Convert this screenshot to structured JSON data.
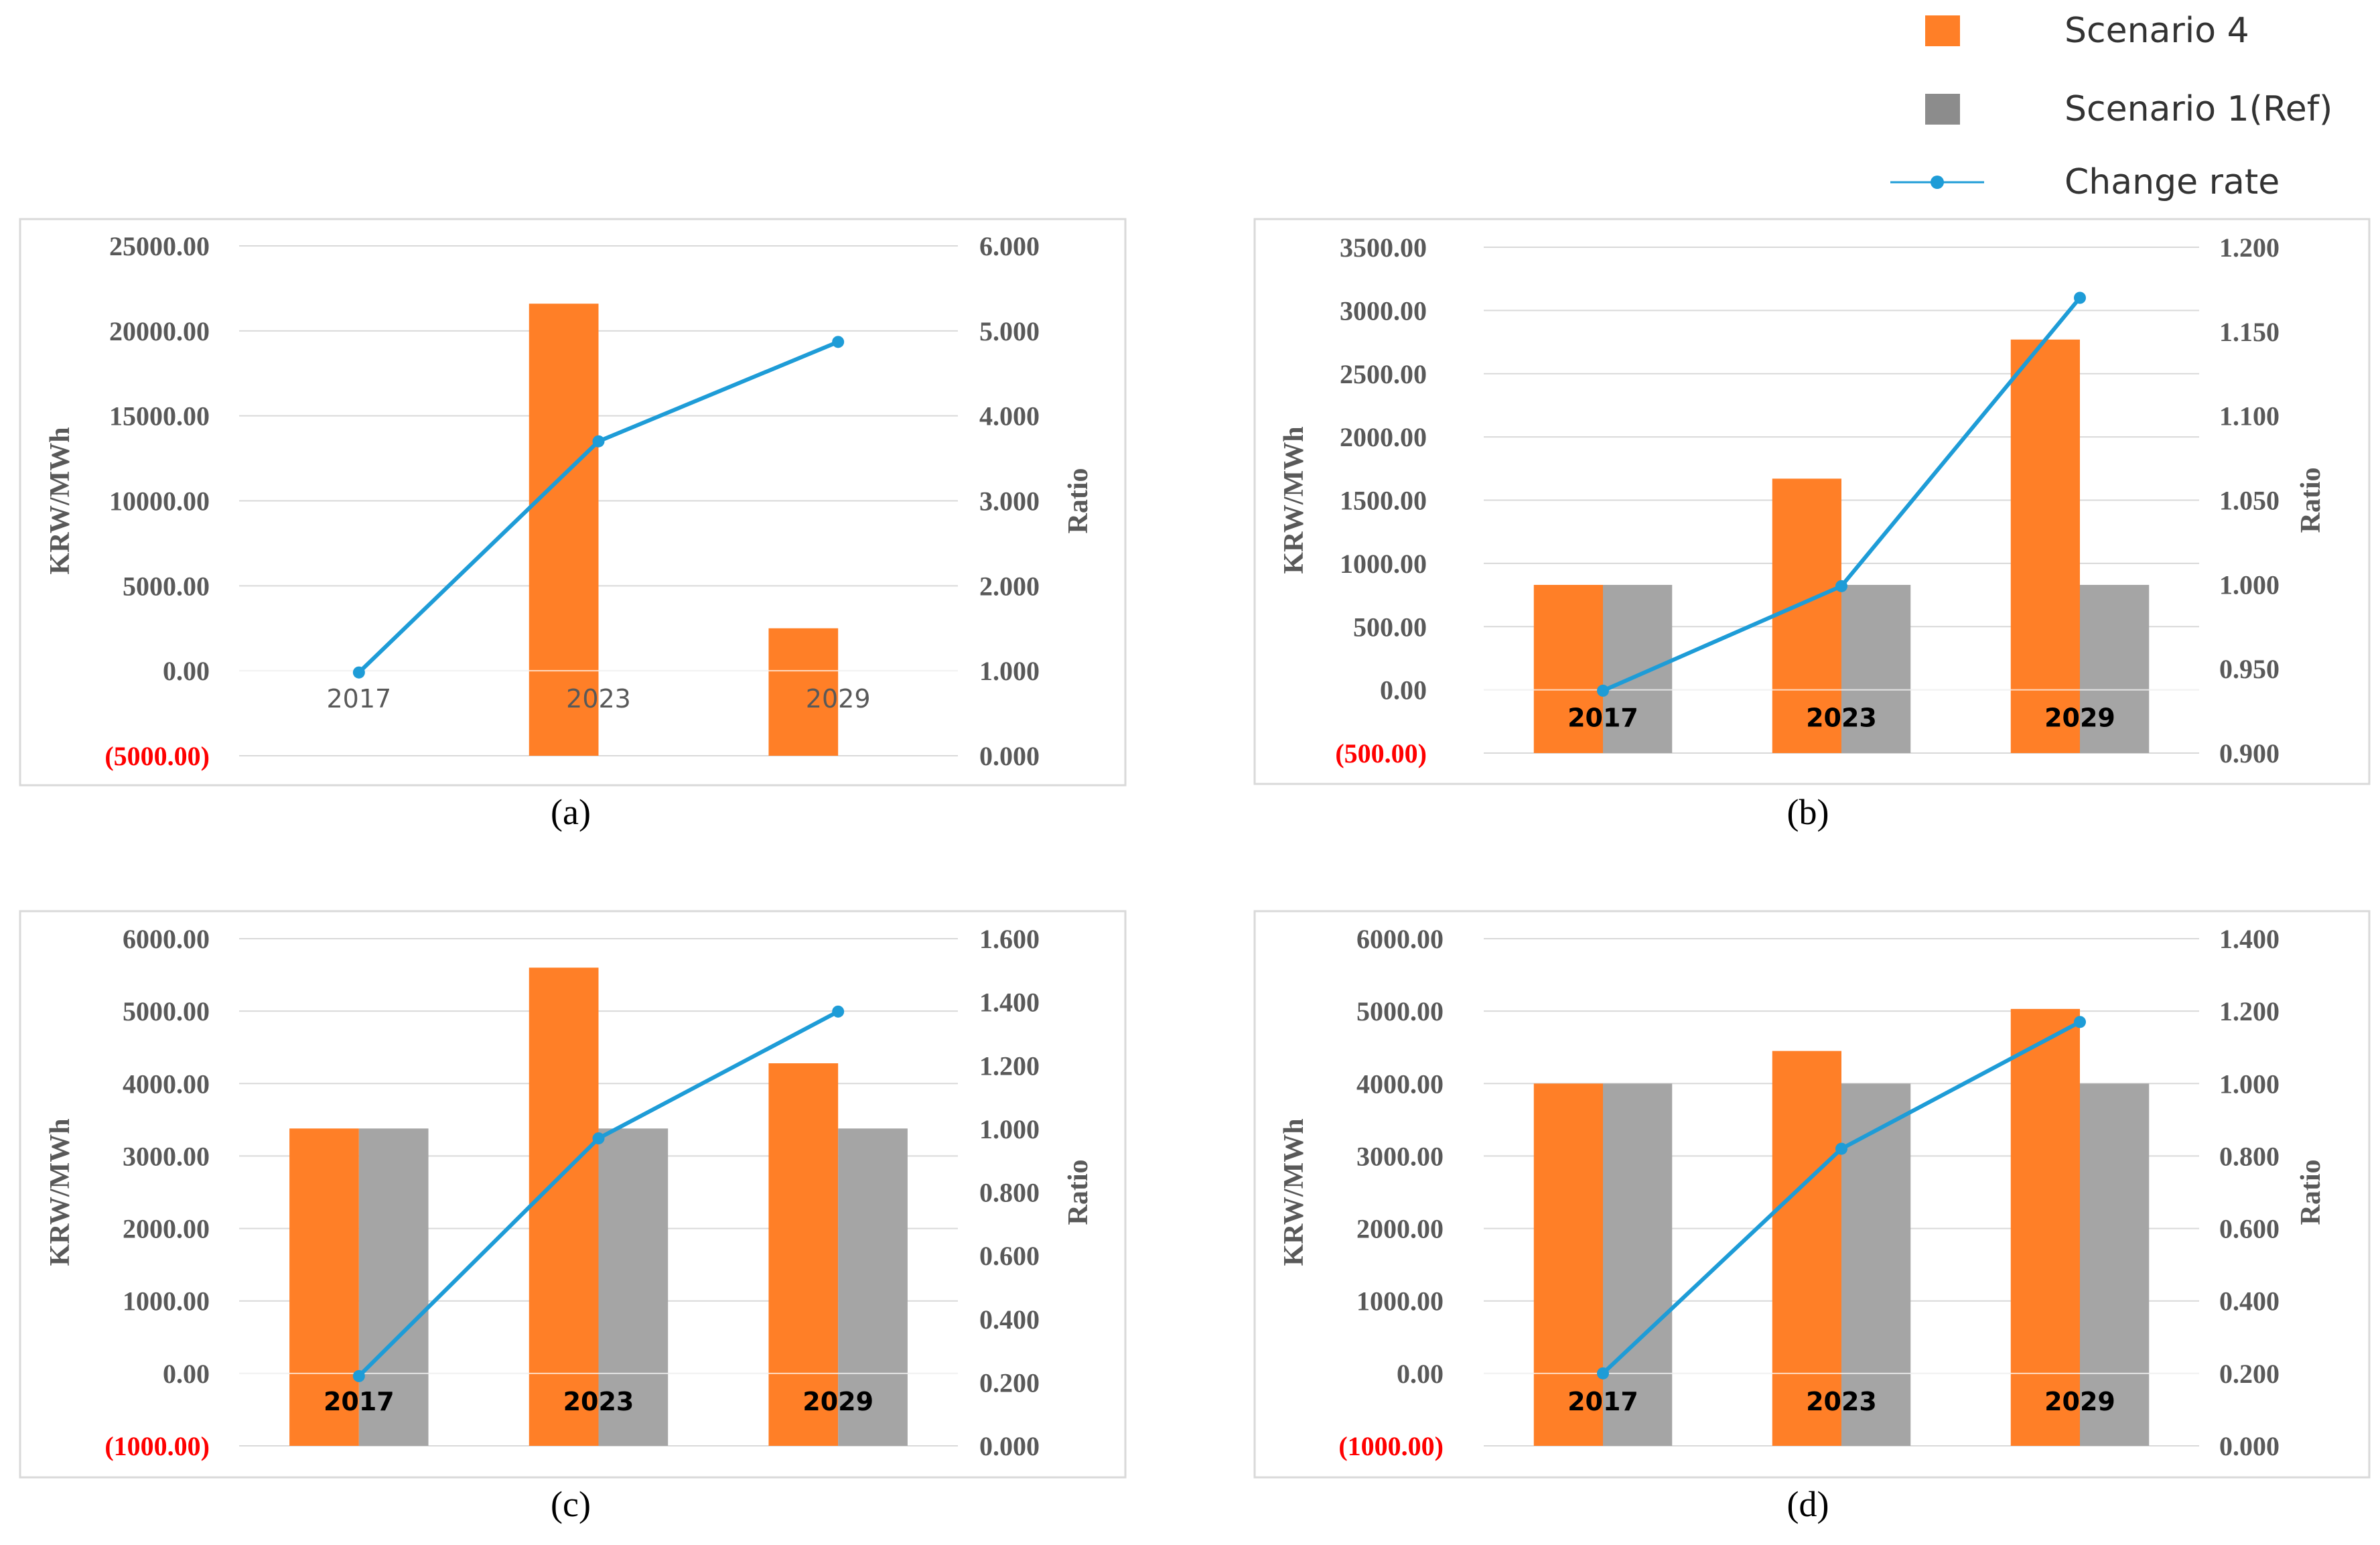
{
  "legend": {
    "items": [
      {
        "label": "Scenario 4",
        "kind": "box",
        "color": "#FF7F27"
      },
      {
        "label": "Scenario 1(Ref)",
        "kind": "box",
        "color": "#8C8C8C"
      },
      {
        "label": "Change rate",
        "kind": "line",
        "color": "#1E9CD7"
      }
    ]
  },
  "colors": {
    "scenario4": "#FF7F27",
    "scenario1": "#A5A5A5",
    "change_rate": "#1E9CD7",
    "negative_label": "#FF0000",
    "grid": "#D9D9D9",
    "frame": "#D9D9D9",
    "axis_text": "#595959"
  },
  "chart_data": [
    {
      "type": "bar",
      "caption": "(a)",
      "categories": [
        "2017",
        "2023",
        "2029"
      ],
      "category_label_style": "normal",
      "series": [
        {
          "name": "Scenario 4",
          "axis": "left",
          "values": [
            -5000,
            21600,
            2500
          ]
        },
        {
          "name": "Scenario 1(Ref)",
          "axis": "left",
          "values": [
            -5000,
            -5000,
            -5000
          ]
        },
        {
          "name": "Change rate",
          "type": "line",
          "axis": "right",
          "values": [
            0.98,
            3.7,
            4.87
          ]
        }
      ],
      "ylabel": "KRW/MWh",
      "ylabel_right": "Ratio",
      "ylim": [
        -5000,
        25000
      ],
      "y2lim": [
        0,
        6
      ],
      "yticks": [
        "(5000.00)",
        "0.00",
        "5000.00",
        "10000.00",
        "15000.00",
        "20000.00",
        "25000.00"
      ],
      "y2ticks": [
        "0.000",
        "1.000",
        "2.000",
        "3.000",
        "4.000",
        "5.000",
        "6.000"
      ]
    },
    {
      "type": "bar",
      "caption": "(b)",
      "categories": [
        "2017",
        "2023",
        "2029"
      ],
      "category_label_style": "bold",
      "series": [
        {
          "name": "Scenario 4",
          "axis": "left",
          "values": [
            830,
            1670,
            2770
          ]
        },
        {
          "name": "Scenario 1(Ref)",
          "axis": "left",
          "values": [
            830,
            830,
            830
          ]
        },
        {
          "name": "Change rate",
          "type": "line",
          "axis": "right",
          "values": [
            0.937,
            0.999,
            1.17
          ]
        }
      ],
      "ylabel": "KRW/MWh",
      "ylabel_right": "Ratio",
      "ylim": [
        -500,
        3500
      ],
      "y2lim": [
        0.9,
        1.2
      ],
      "yticks": [
        "(500.00)",
        "0.00",
        "500.00",
        "1000.00",
        "1500.00",
        "2000.00",
        "2500.00",
        "3000.00",
        "3500.00"
      ],
      "y2ticks": [
        "0.900",
        "0.950",
        "1.000",
        "1.050",
        "1.100",
        "1.150",
        "1.200"
      ]
    },
    {
      "type": "bar",
      "caption": "(c)",
      "categories": [
        "2017",
        "2023",
        "2029"
      ],
      "category_label_style": "bold",
      "series": [
        {
          "name": "Scenario 4",
          "axis": "left",
          "values": [
            3380,
            5600,
            4280
          ]
        },
        {
          "name": "Scenario 1(Ref)",
          "axis": "left",
          "values": [
            3380,
            3380,
            3380
          ]
        },
        {
          "name": "Change rate",
          "type": "line",
          "axis": "right",
          "values": [
            0.22,
            0.97,
            1.37
          ]
        }
      ],
      "ylabel": "KRW/MWh",
      "ylabel_right": "Ratio",
      "ylim": [
        -1000,
        6000
      ],
      "y2lim": [
        0,
        1.6
      ],
      "yticks": [
        "(1000.00)",
        "0.00",
        "1000.00",
        "2000.00",
        "3000.00",
        "4000.00",
        "5000.00",
        "6000.00"
      ],
      "y2ticks": [
        "0.000",
        "0.200",
        "0.400",
        "0.600",
        "0.800",
        "1.000",
        "1.200",
        "1.400",
        "1.600"
      ]
    },
    {
      "type": "bar",
      "caption": "(d)",
      "categories": [
        "2017",
        "2023",
        "2029"
      ],
      "category_label_style": "bold",
      "series": [
        {
          "name": "Scenario 4",
          "axis": "left",
          "values": [
            4000,
            4450,
            5030
          ]
        },
        {
          "name": "Scenario 1(Ref)",
          "axis": "left",
          "values": [
            4000,
            4000,
            4000
          ]
        },
        {
          "name": "Change rate",
          "type": "line",
          "axis": "right",
          "values": [
            0.2,
            0.82,
            1.17
          ]
        }
      ],
      "ylabel": "KRW/MWh",
      "ylabel_right": "Ratio",
      "ylim": [
        -1000,
        6000
      ],
      "y2lim": [
        0,
        1.4
      ],
      "yticks": [
        "(1000.00)",
        "0.00",
        "1000.00",
        "2000.00",
        "3000.00",
        "4000.00",
        "5000.00",
        "6000.00"
      ],
      "y2ticks": [
        "0.000",
        "0.200",
        "0.400",
        "0.600",
        "0.800",
        "1.000",
        "1.200",
        "1.400"
      ]
    }
  ]
}
